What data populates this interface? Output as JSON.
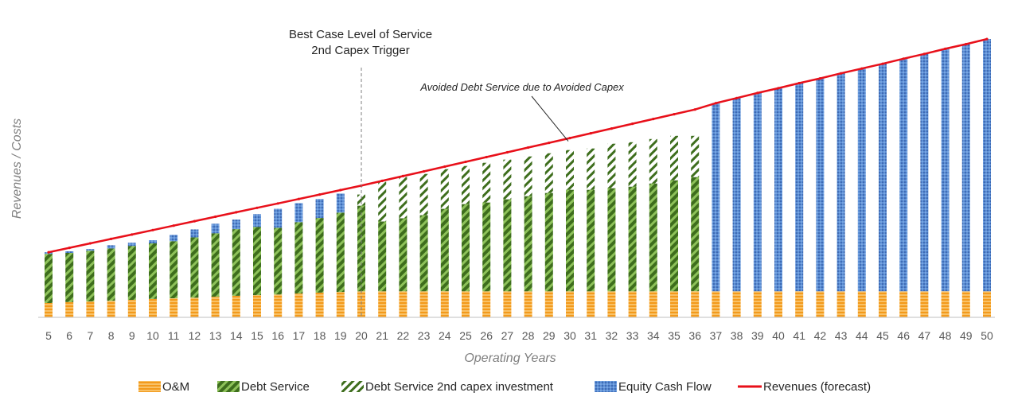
{
  "chart_data": {
    "type": "bar",
    "stacked": true,
    "xlabel": "Operating Years",
    "ylabel": "Revenues / Costs",
    "grid": false,
    "legend_position": "bottom",
    "ylim": [
      0,
      100
    ],
    "categories": [
      "5",
      "6",
      "7",
      "8",
      "9",
      "10",
      "11",
      "12",
      "13",
      "14",
      "15",
      "16",
      "17",
      "18",
      "19",
      "20",
      "21",
      "22",
      "23",
      "24",
      "25",
      "26",
      "27",
      "28",
      "29",
      "30",
      "31",
      "32",
      "33",
      "34",
      "35",
      "36",
      "37",
      "38",
      "39",
      "40",
      "41",
      "42",
      "43",
      "44",
      "45",
      "46",
      "47",
      "48",
      "49",
      "50"
    ],
    "series": [
      {
        "name": "O&M",
        "kind": "bar",
        "color": "#f5a623",
        "values": [
          4.5,
          4.8,
          5,
          5.2,
          5.5,
          5.8,
          6,
          6.2,
          6.5,
          6.8,
          7,
          7.2,
          7.5,
          7.8,
          8,
          8.2,
          8.2,
          8.2,
          8.2,
          8.2,
          8.2,
          8.2,
          8.2,
          8.2,
          8.2,
          8.2,
          8.2,
          8.2,
          8.2,
          8.2,
          8.2,
          8.2,
          8.2,
          8.2,
          8.2,
          8.2,
          8.2,
          8.2,
          8.2,
          8.2,
          8.2,
          8.2,
          8.2,
          8.2,
          8.2,
          8.2
        ]
      },
      {
        "name": "Debt Service",
        "kind": "bar",
        "color": "#4f8a2b",
        "values": [
          15.5,
          15.5,
          16,
          16.5,
          17,
          17.5,
          18,
          19,
          20,
          21,
          21.5,
          21,
          22.5,
          23.5,
          25,
          27,
          22,
          23,
          24,
          26,
          27.5,
          28,
          29,
          30,
          31,
          32,
          32,
          32.5,
          33,
          34,
          35,
          36,
          0,
          0,
          0,
          0,
          0,
          0,
          0,
          0,
          0,
          0,
          0,
          0,
          0,
          0
        ]
      },
      {
        "name": "Debt Service 2nd capex investment",
        "kind": "bar",
        "color": "#3e6e1d",
        "values": [
          0,
          0,
          0,
          0,
          0,
          0,
          0,
          0,
          0,
          0,
          0,
          0,
          0,
          0,
          0,
          3.5,
          12.5,
          13,
          13,
          12.5,
          12,
          12.5,
          12.5,
          12.5,
          12.5,
          12.5,
          13,
          14,
          14,
          14,
          14,
          13,
          0,
          0,
          0,
          0,
          0,
          0,
          0,
          0,
          0,
          0,
          0,
          0,
          0,
          0
        ]
      },
      {
        "name": "Equity Cash Flow",
        "kind": "bar",
        "color": "#4472c4",
        "values": [
          0.5,
          0.5,
          0.5,
          1,
          1,
          1,
          2,
          2.5,
          3,
          3,
          4,
          6,
          6,
          6,
          6,
          0,
          0,
          0,
          0,
          0,
          0,
          0,
          0,
          0,
          0,
          0,
          0,
          0,
          0,
          0,
          0,
          0,
          59.3,
          60.9,
          62.5,
          64,
          65.6,
          67.1,
          68.7,
          70.2,
          71.7,
          73.3,
          74.8,
          76.4,
          77.9,
          79.5
        ]
      },
      {
        "name": "Revenues (forecast)",
        "kind": "line",
        "color": "#e8101a",
        "values": [
          20.5,
          21.9,
          23.3,
          24.7,
          26.1,
          27.5,
          28.9,
          30.3,
          31.7,
          33.1,
          34.5,
          35.9,
          37.3,
          38.7,
          40.1,
          41.5,
          43.0,
          44.5,
          46.0,
          47.5,
          49.0,
          50.5,
          52.0,
          53.5,
          55.0,
          56.5,
          58.0,
          59.5,
          61.0,
          62.5,
          64.0,
          65.5,
          67.5,
          69.1,
          70.7,
          72.2,
          73.8,
          75.3,
          76.9,
          78.4,
          79.9,
          81.5,
          83.0,
          84.6,
          86.1,
          87.7
        ]
      }
    ],
    "annotations": [
      {
        "text_lines": [
          "Best Case Level of Service",
          "2nd Capex Trigger"
        ],
        "x": "20",
        "style": "dashed-vertical-line"
      },
      {
        "text": "Avoided Debt Service due to Avoided Capex",
        "x": "30",
        "style": "italic-arrow"
      }
    ]
  }
}
